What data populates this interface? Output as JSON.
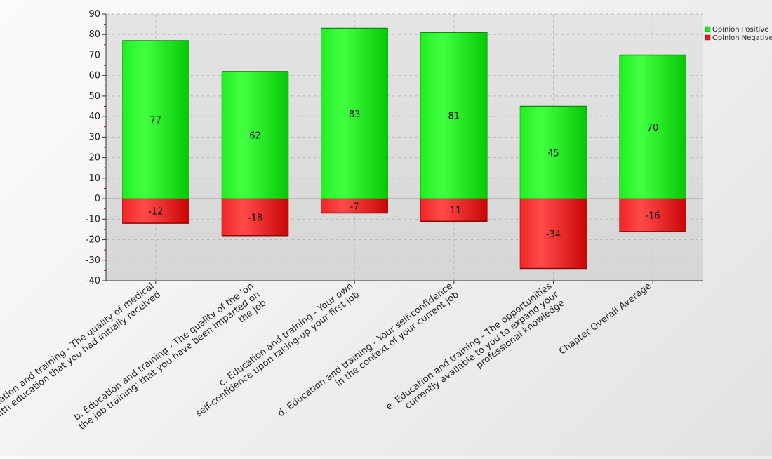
{
  "chart_data": {
    "type": "bar",
    "stacked": true,
    "categories": [
      [
        "a. Education and training - The quality of medical",
        "health education that you had initially received"
      ],
      [
        "b. Education and training - The quality of the 'on",
        "the job training' that you have been imparted on",
        "the job"
      ],
      [
        "c. Education and training - Your own",
        "self-confidence upon taking-up your first job"
      ],
      [
        "d. Education and training - Your self-confidence",
        "in the context of your current job"
      ],
      [
        "e. Education and training - The opportunities",
        "currently available to you to expand your",
        "professional knowledge"
      ],
      [
        "Chapter Overall Average"
      ]
    ],
    "series": [
      {
        "name": "Opinion Positive",
        "values": [
          77,
          62,
          83,
          81,
          45,
          70
        ],
        "color": "#1ee81e"
      },
      {
        "name": "Opinion Negative",
        "values": [
          -12,
          -18,
          -7,
          -11,
          -34,
          -16
        ],
        "color": "#e81c1c"
      }
    ],
    "ylim": [
      -40,
      90
    ],
    "yticks": [
      -40,
      -30,
      -20,
      -10,
      0,
      10,
      20,
      30,
      40,
      50,
      60,
      70,
      80,
      90
    ],
    "grid": true,
    "legend_position": "top-right",
    "title": "",
    "xlabel": "",
    "ylabel": ""
  }
}
